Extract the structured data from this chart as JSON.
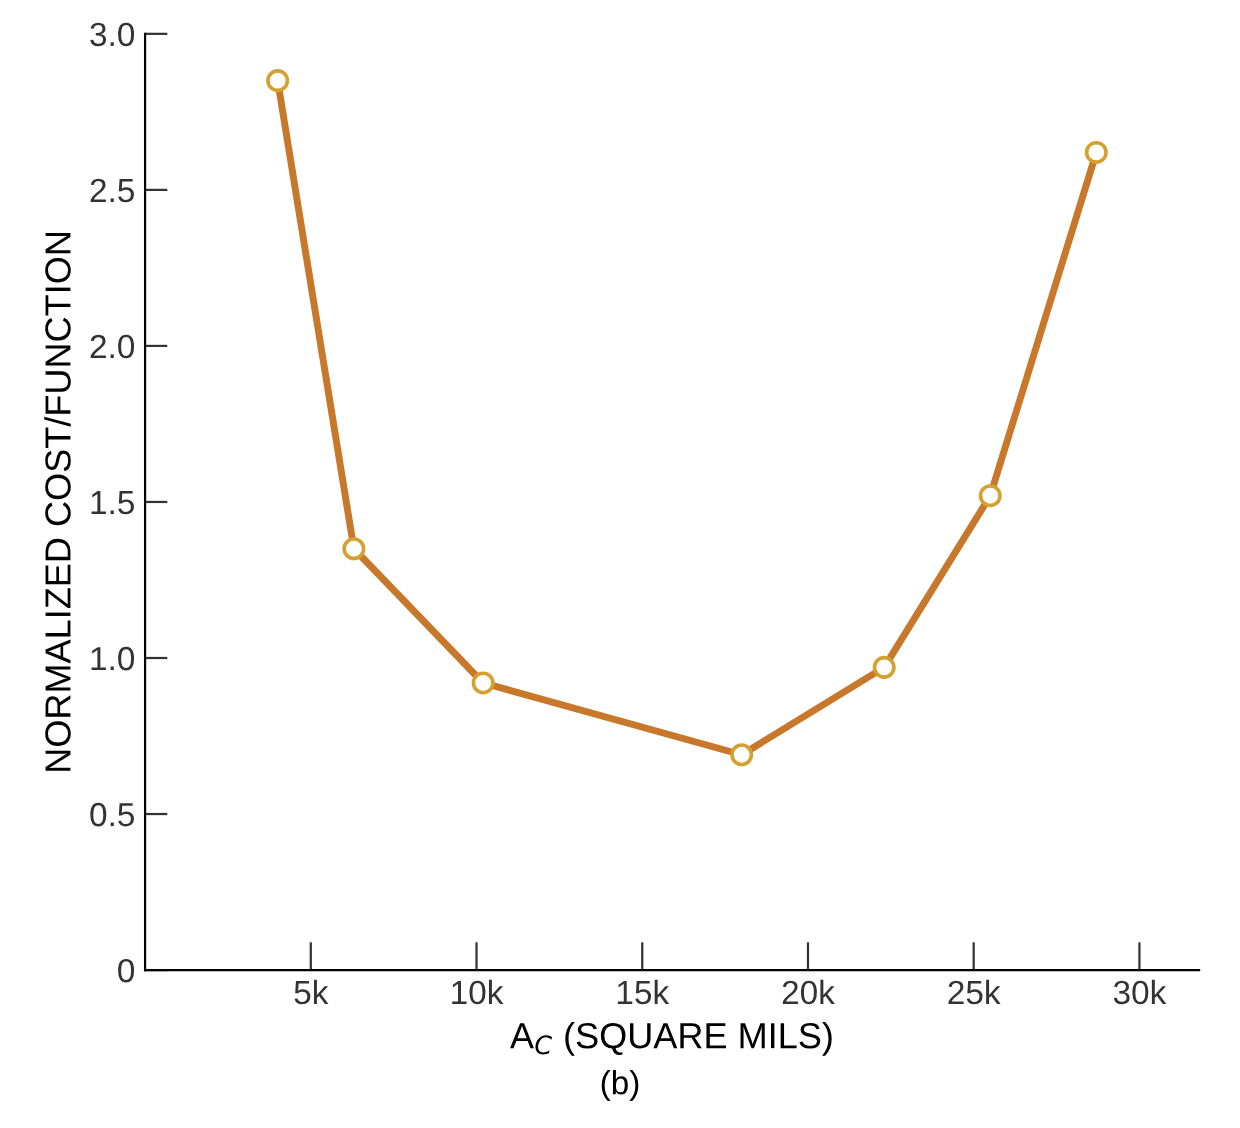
{
  "chart_data": {
    "type": "line",
    "xlabel": "A$_{C}$ (SQUARE MILS)",
    "ylabel": "NORMALIZED COST/FUNCTION",
    "annotations": [
      "(b)"
    ],
    "x": [
      4000,
      6300,
      10200,
      18000,
      22300,
      25500,
      28700
    ],
    "series": [
      {
        "color": "#c8782a",
        "values": [
          2.85,
          1.35,
          0.92,
          0.69,
          0.97,
          1.52,
          2.62
        ]
      }
    ],
    "xlim": [
      0,
      31800
    ],
    "xticks": [
      {
        "value": 5000,
        "label": "5k"
      },
      {
        "value": 10000,
        "label": "10k"
      },
      {
        "value": 15000,
        "label": "15k"
      },
      {
        "value": 20000,
        "label": "20k"
      },
      {
        "value": 25000,
        "label": "25k"
      },
      {
        "value": 30000,
        "label": "30k"
      }
    ],
    "ylim": [
      0,
      3.0
    ],
    "yticks": [
      0,
      0.5,
      {
        "value": 1,
        "label": "1.0"
      },
      1.5,
      {
        "value": 2,
        "label": "2.0"
      },
      2.5,
      {
        "value": 3,
        "label": "3.0"
      }
    ],
    "grid": false,
    "marker": "circle",
    "line_style": "solid"
  }
}
